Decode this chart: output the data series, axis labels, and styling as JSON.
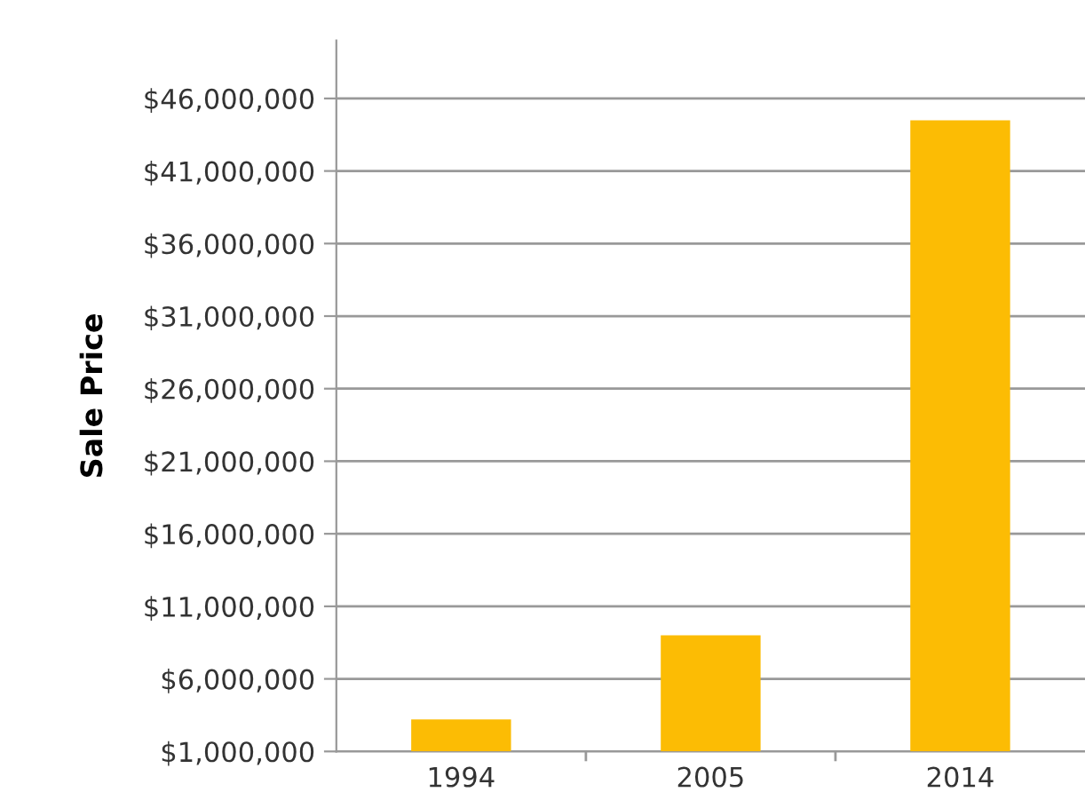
{
  "chart_data": {
    "type": "bar",
    "ylabel": "Sale Price",
    "categories": [
      "1994",
      "2005",
      "2014"
    ],
    "values": [
      3200000,
      9000000,
      44500000
    ],
    "color": "#fcbc04",
    "ylim": [
      1000000,
      50000000
    ],
    "yticks": [
      {
        "value": 1000000,
        "label": "$1,000,000"
      },
      {
        "value": 6000000,
        "label": "$6,000,000"
      },
      {
        "value": 11000000,
        "label": "$11,000,000"
      },
      {
        "value": 16000000,
        "label": "$16,000,000"
      },
      {
        "value": 21000000,
        "label": "$21,000,000"
      },
      {
        "value": 26000000,
        "label": "$26,000,000"
      },
      {
        "value": 31000000,
        "label": "$31,000,000"
      },
      {
        "value": 36000000,
        "label": "$36,000,000"
      },
      {
        "value": 41000000,
        "label": "$41,000,000"
      },
      {
        "value": 46000000,
        "label": "$46,000,000"
      }
    ],
    "grid": "y"
  }
}
